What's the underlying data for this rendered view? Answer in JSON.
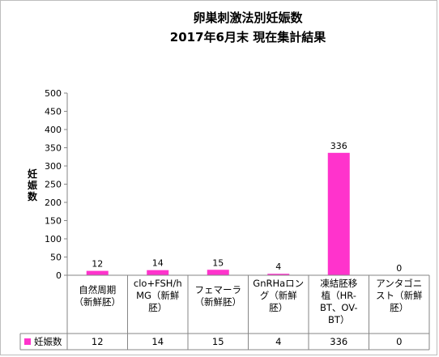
{
  "chart_data": {
    "type": "bar",
    "title": "卵巣刺激法別妊娠数",
    "subtitle": "2017年6月末 現在集計結果",
    "ylabel": "妊娠数",
    "ylim": [
      0,
      500
    ],
    "yticks": [
      "0",
      "50",
      "100",
      "150",
      "200",
      "250",
      "300",
      "350",
      "400",
      "450",
      "500"
    ],
    "categories": [
      [
        "自然周期",
        "（新鮮胚）"
      ],
      [
        "clo+FSH/h",
        "MG（新鮮",
        "胚）"
      ],
      [
        "フェマーラ",
        "（新鮮胚）"
      ],
      [
        "GnRHaロン",
        "グ（新鮮",
        "胚）"
      ],
      [
        "凍結胚移",
        "植（HR-",
        "BT、OV-",
        "BT）"
      ],
      [
        "アンタゴニ",
        "スト（新鮮",
        "胚）"
      ]
    ],
    "series": [
      {
        "name": "妊娠数",
        "values": [
          12,
          14,
          15,
          4,
          336,
          0
        ]
      }
    ],
    "data_labels": [
      "12",
      "14",
      "15",
      "4",
      "336",
      "0"
    ],
    "color": "#ff33cc",
    "grid": false,
    "legend_placement": "data-table"
  }
}
